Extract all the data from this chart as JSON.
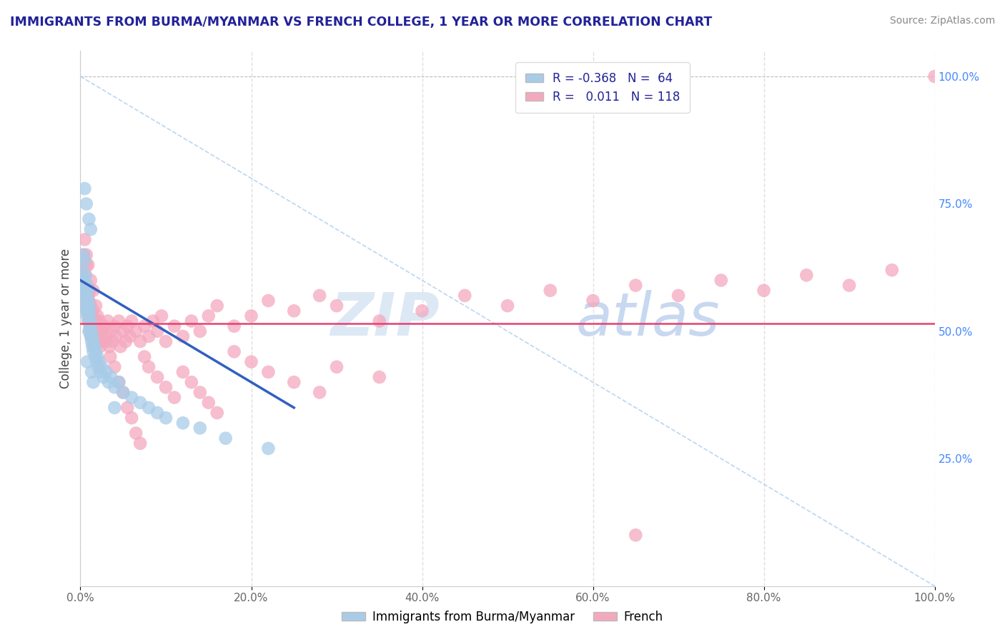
{
  "title": "IMMIGRANTS FROM BURMA/MYANMAR VS FRENCH COLLEGE, 1 YEAR OR MORE CORRELATION CHART",
  "source_text": "Source: ZipAtlas.com",
  "ylabel": "College, 1 year or more",
  "xlim": [
    0.0,
    1.0
  ],
  "ylim": [
    0.0,
    1.05
  ],
  "xtick_values": [
    0.0,
    0.2,
    0.4,
    0.6,
    0.8,
    1.0
  ],
  "xtick_labels": [
    "0.0%",
    "20.0%",
    "40.0%",
    "60.0%",
    "80.0%",
    "100.0%"
  ],
  "ytick_labels_right": [
    "25.0%",
    "50.0%",
    "75.0%",
    "100.0%"
  ],
  "ytick_values_right": [
    0.25,
    0.5,
    0.75,
    1.0
  ],
  "blue_R": -0.368,
  "blue_N": 64,
  "pink_R": 0.011,
  "pink_N": 118,
  "blue_color": "#a8cce8",
  "pink_color": "#f4a8be",
  "blue_trend_color": "#3060c0",
  "pink_trend_color": "#e84070",
  "blue_trend_x0": 0.0,
  "blue_trend_y0": 0.6,
  "blue_trend_x1": 0.25,
  "blue_trend_y1": 0.35,
  "pink_trend_y": 0.515,
  "diag_color": "#aaccee",
  "legend_label_blue": "Immigrants from Burma/Myanmar",
  "legend_label_pink": "French",
  "title_color": "#222299",
  "source_color": "#888888",
  "grid_color": "#e0e0e0",
  "blue_scatter_x": [
    0.002,
    0.003,
    0.004,
    0.004,
    0.005,
    0.005,
    0.005,
    0.006,
    0.006,
    0.006,
    0.007,
    0.007,
    0.007,
    0.008,
    0.008,
    0.008,
    0.009,
    0.009,
    0.01,
    0.01,
    0.01,
    0.011,
    0.011,
    0.012,
    0.012,
    0.013,
    0.013,
    0.014,
    0.014,
    0.015,
    0.015,
    0.016,
    0.017,
    0.018,
    0.019,
    0.02,
    0.021,
    0.022,
    0.023,
    0.025,
    0.027,
    0.03,
    0.033,
    0.036,
    0.04,
    0.045,
    0.05,
    0.06,
    0.07,
    0.08,
    0.09,
    0.1,
    0.12,
    0.14,
    0.17,
    0.22,
    0.005,
    0.007,
    0.01,
    0.012,
    0.008,
    0.013,
    0.015,
    0.04
  ],
  "blue_scatter_y": [
    0.62,
    0.65,
    0.6,
    0.58,
    0.64,
    0.6,
    0.57,
    0.61,
    0.58,
    0.55,
    0.59,
    0.57,
    0.54,
    0.58,
    0.56,
    0.53,
    0.56,
    0.54,
    0.55,
    0.52,
    0.5,
    0.54,
    0.51,
    0.52,
    0.49,
    0.5,
    0.48,
    0.49,
    0.47,
    0.48,
    0.46,
    0.47,
    0.45,
    0.46,
    0.44,
    0.45,
    0.43,
    0.44,
    0.42,
    0.43,
    0.41,
    0.42,
    0.4,
    0.41,
    0.39,
    0.4,
    0.38,
    0.37,
    0.36,
    0.35,
    0.34,
    0.33,
    0.32,
    0.31,
    0.29,
    0.27,
    0.78,
    0.75,
    0.72,
    0.7,
    0.44,
    0.42,
    0.4,
    0.35
  ],
  "pink_scatter_x": [
    0.002,
    0.003,
    0.004,
    0.005,
    0.005,
    0.006,
    0.006,
    0.007,
    0.007,
    0.008,
    0.008,
    0.009,
    0.009,
    0.01,
    0.01,
    0.011,
    0.011,
    0.012,
    0.012,
    0.013,
    0.013,
    0.014,
    0.015,
    0.015,
    0.016,
    0.017,
    0.018,
    0.019,
    0.02,
    0.021,
    0.022,
    0.023,
    0.025,
    0.027,
    0.028,
    0.03,
    0.032,
    0.034,
    0.036,
    0.038,
    0.04,
    0.042,
    0.045,
    0.047,
    0.05,
    0.053,
    0.055,
    0.058,
    0.06,
    0.065,
    0.07,
    0.075,
    0.08,
    0.085,
    0.09,
    0.095,
    0.1,
    0.11,
    0.12,
    0.13,
    0.14,
    0.15,
    0.16,
    0.18,
    0.2,
    0.22,
    0.25,
    0.28,
    0.3,
    0.35,
    0.4,
    0.45,
    0.5,
    0.55,
    0.6,
    0.65,
    0.7,
    0.75,
    0.8,
    0.85,
    0.9,
    0.95,
    1.0,
    0.005,
    0.007,
    0.009,
    0.012,
    0.015,
    0.018,
    0.022,
    0.025,
    0.03,
    0.035,
    0.04,
    0.045,
    0.05,
    0.055,
    0.06,
    0.065,
    0.07,
    0.075,
    0.08,
    0.09,
    0.1,
    0.11,
    0.12,
    0.13,
    0.14,
    0.15,
    0.16,
    0.18,
    0.2,
    0.22,
    0.25,
    0.28,
    0.3,
    0.35,
    0.65
  ],
  "pink_scatter_y": [
    0.62,
    0.58,
    0.65,
    0.6,
    0.57,
    0.61,
    0.55,
    0.63,
    0.58,
    0.59,
    0.54,
    0.57,
    0.52,
    0.56,
    0.53,
    0.58,
    0.5,
    0.55,
    0.51,
    0.53,
    0.49,
    0.52,
    0.54,
    0.5,
    0.51,
    0.49,
    0.52,
    0.5,
    0.53,
    0.48,
    0.51,
    0.47,
    0.5,
    0.48,
    0.51,
    0.49,
    0.52,
    0.47,
    0.5,
    0.48,
    0.51,
    0.49,
    0.52,
    0.47,
    0.5,
    0.48,
    0.51,
    0.49,
    0.52,
    0.5,
    0.48,
    0.51,
    0.49,
    0.52,
    0.5,
    0.53,
    0.48,
    0.51,
    0.49,
    0.52,
    0.5,
    0.53,
    0.55,
    0.51,
    0.53,
    0.56,
    0.54,
    0.57,
    0.55,
    0.52,
    0.54,
    0.57,
    0.55,
    0.58,
    0.56,
    0.59,
    0.57,
    0.6,
    0.58,
    0.61,
    0.59,
    0.62,
    1.0,
    0.68,
    0.65,
    0.63,
    0.6,
    0.58,
    0.55,
    0.52,
    0.5,
    0.48,
    0.45,
    0.43,
    0.4,
    0.38,
    0.35,
    0.33,
    0.3,
    0.28,
    0.45,
    0.43,
    0.41,
    0.39,
    0.37,
    0.42,
    0.4,
    0.38,
    0.36,
    0.34,
    0.46,
    0.44,
    0.42,
    0.4,
    0.38,
    0.43,
    0.41,
    0.1
  ]
}
